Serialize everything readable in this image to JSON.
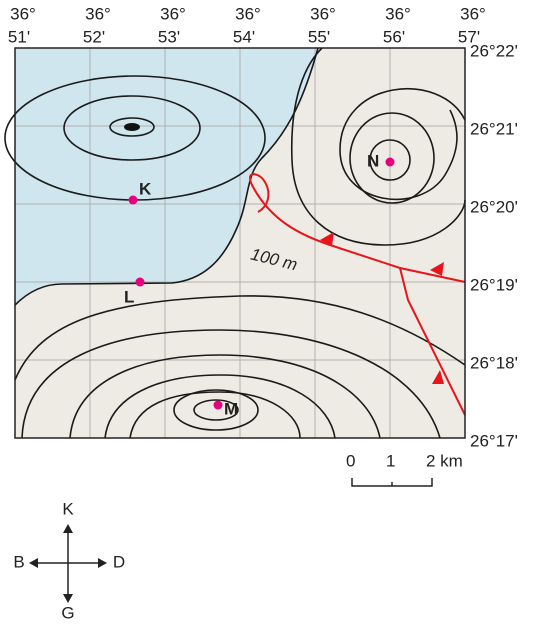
{
  "map": {
    "longitudes": [
      {
        "deg": "36°",
        "min": "51'"
      },
      {
        "deg": "36°",
        "min": "52'"
      },
      {
        "deg": "36°",
        "min": "53'"
      },
      {
        "deg": "36°",
        "min": "54'"
      },
      {
        "deg": "36°",
        "min": "55'"
      },
      {
        "deg": "36°",
        "min": "56'"
      },
      {
        "deg": "36°",
        "min": "57'"
      }
    ],
    "latitudes": [
      "26°22'",
      "26°21'",
      "26°20'",
      "26°19'",
      "26°18'",
      "26°17'"
    ],
    "points": [
      "K",
      "L",
      "M",
      "N"
    ],
    "contour_label": "100 m",
    "scale": [
      "0",
      "1",
      "2 km"
    ],
    "compass": {
      "north": "K",
      "west": "B",
      "east": "D",
      "south": "G"
    }
  }
}
